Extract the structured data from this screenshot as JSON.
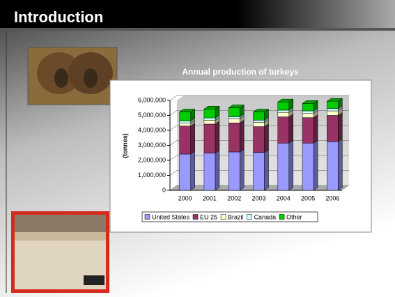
{
  "slide": {
    "title": "Introduction"
  },
  "chart_data": {
    "type": "bar",
    "stacked": true,
    "title": "Annual production of turkeys",
    "y_label": "(tonnes)",
    "categories": [
      "2000",
      "2001",
      "2002",
      "2003",
      "2004",
      "2005",
      "2006"
    ],
    "series": [
      {
        "name": "United States",
        "color": "#9999ff",
        "values": [
          2420000,
          2490000,
          2560000,
          2530000,
          3150000,
          3150000,
          3250000
        ]
      },
      {
        "name": "EU 25",
        "color": "#993366",
        "values": [
          1870000,
          1930000,
          1940000,
          1720000,
          1750000,
          1700000,
          1750000
        ]
      },
      {
        "name": "Brazil",
        "color": "#ffffcc",
        "values": [
          190000,
          260000,
          270000,
          290000,
          300000,
          300000,
          300000
        ]
      },
      {
        "name": "Canada",
        "color": "#ccffff",
        "values": [
          150000,
          150000,
          140000,
          140000,
          150000,
          150000,
          150000
        ]
      },
      {
        "name": "Other",
        "color": "#00cc00",
        "values": [
          600000,
          600000,
          600000,
          550000,
          550000,
          500000,
          500000
        ]
      }
    ],
    "ylim": [
      0,
      6000000
    ],
    "yticks": [
      0,
      {
        "value": 1000000,
        "label": "1,000,000"
      },
      {
        "value": 2000000,
        "label": "2,000,000"
      },
      {
        "value": 3000000,
        "label": "3,000,000"
      },
      {
        "value": 4000000,
        "label": "4,000,000"
      },
      {
        "value": 5000000,
        "label": "5,000,000"
      },
      {
        "value": 6000000,
        "label": "6,000,000"
      }
    ],
    "grid": true,
    "legend": "bottom"
  }
}
